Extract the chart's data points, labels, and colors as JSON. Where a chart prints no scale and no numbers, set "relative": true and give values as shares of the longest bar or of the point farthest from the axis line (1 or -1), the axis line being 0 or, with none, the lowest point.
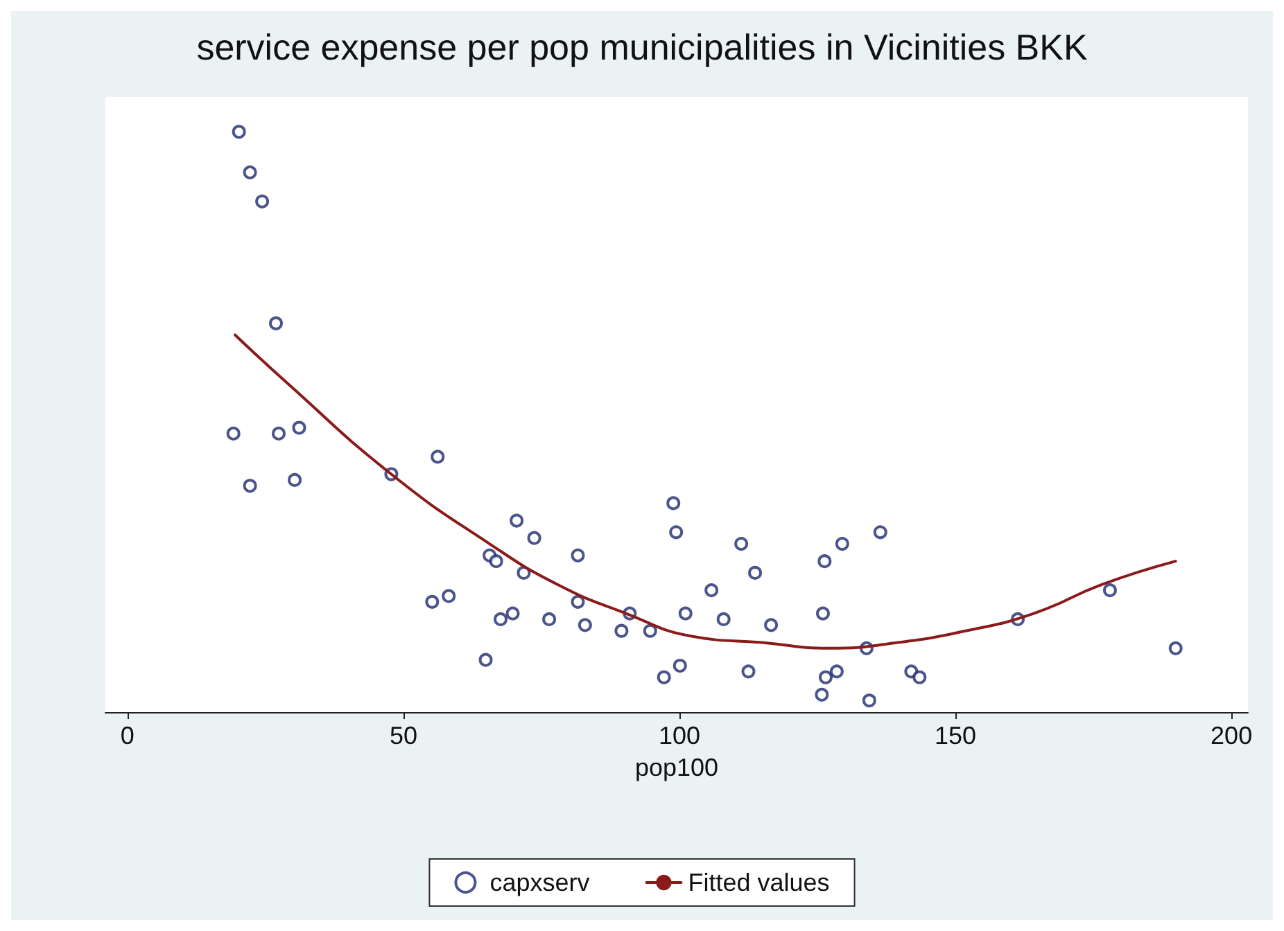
{
  "chart_data": {
    "type": "scatter",
    "title": "service expense per pop municipalities in Vicinities BKK",
    "xlabel": "pop100",
    "relative": true,
    "tick_labels": "x",
    "xlim": [
      -4,
      203
    ],
    "xticks": [
      0,
      50,
      100,
      150,
      200
    ],
    "grid": false,
    "legend": "bottom",
    "marker": "circle",
    "series": [
      {
        "name": "capxserv",
        "color": "#1f2a6e",
        "x": [
          20.2,
          22.2,
          24.4,
          26.9,
          19.2,
          27.4,
          31.1,
          22.2,
          30.3,
          47.8,
          56.2,
          70.5,
          73.7,
          65.6,
          66.8,
          81.6,
          71.8,
          55.2,
          58.2,
          67.6,
          69.8,
          76.4,
          81.6,
          82.9,
          64.9,
          98.9,
          99.4,
          111.2,
          129.5,
          136.4,
          113.7,
          105.8,
          126.3,
          91.0,
          89.5,
          94.7,
          101.1,
          108.0,
          116.6,
          97.2,
          100.1,
          112.5,
          126.0,
          126.5,
          128.5,
          125.8,
          133.9,
          134.4,
          142.0,
          143.5,
          161.3,
          178.0,
          189.9
        ],
        "values": [
          1.0,
          0.93,
          0.88,
          0.67,
          0.48,
          0.48,
          0.49,
          0.39,
          0.4,
          0.41,
          0.44,
          0.33,
          0.3,
          0.27,
          0.26,
          0.27,
          0.24,
          0.19,
          0.2,
          0.16,
          0.17,
          0.16,
          0.19,
          0.15,
          0.09,
          0.36,
          0.31,
          0.29,
          0.29,
          0.31,
          0.24,
          0.21,
          0.26,
          0.17,
          0.14,
          0.14,
          0.17,
          0.16,
          0.15,
          0.06,
          0.08,
          0.07,
          0.17,
          0.06,
          0.07,
          0.03,
          0.11,
          0.02,
          0.07,
          0.06,
          0.16,
          0.21,
          0.11
        ]
      },
      {
        "name": "Fitted values",
        "type": "line",
        "color": "#8b1a1a",
        "marker": "none",
        "line_style": "solid",
        "x": [
          19.5,
          28.6,
          47.8,
          65.6,
          77.9,
          90.3,
          102.6,
          114.9,
          127.2,
          139.6,
          151.9,
          164.2,
          176.6,
          189.9
        ],
        "values": [
          0.65,
          0.57,
          0.41,
          0.29,
          0.22,
          0.17,
          0.13,
          0.12,
          0.11,
          0.12,
          0.14,
          0.17,
          0.22,
          0.26
        ]
      }
    ]
  }
}
